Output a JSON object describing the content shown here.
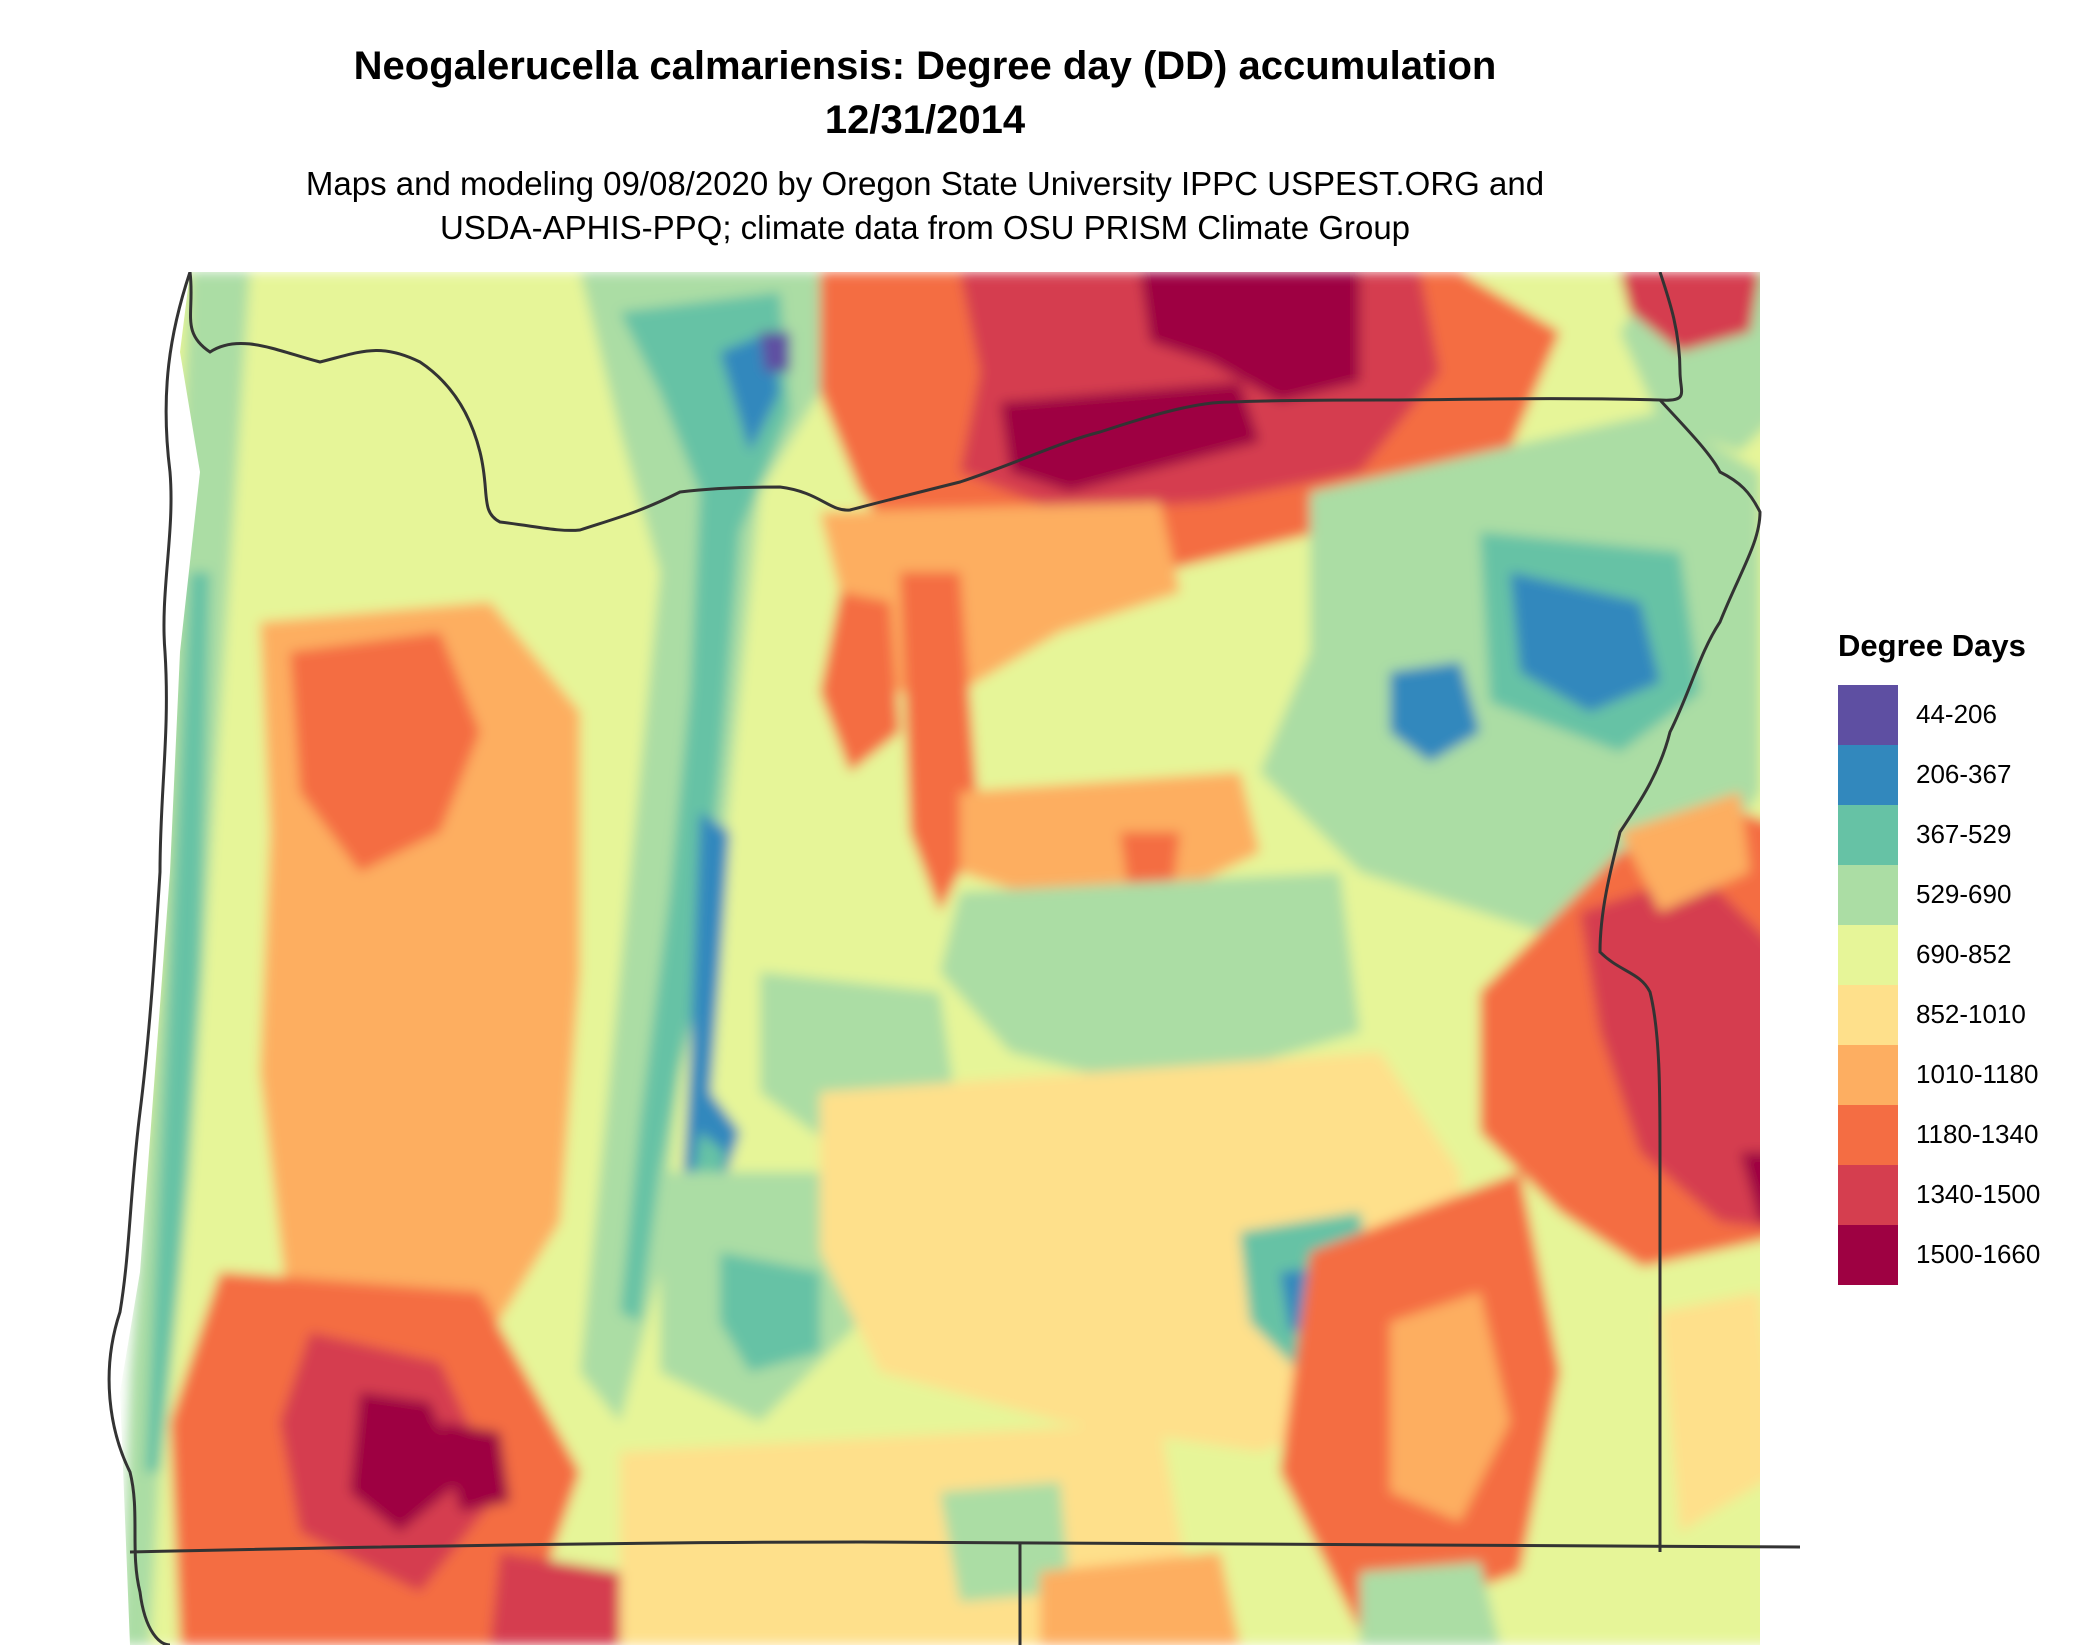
{
  "title": {
    "line1": "Neogalerucella calmariensis: Degree day (DD) accumulation",
    "line2": "12/31/2014"
  },
  "subtitle": {
    "line1": "Maps and modeling 09/08/2020 by Oregon State University IPPC USPEST.ORG and",
    "line2": "USDA-APHIS-PPQ; climate data from OSU PRISM Climate Group"
  },
  "legend": {
    "title": "Degree Days",
    "items": [
      {
        "label": "44-206",
        "color": "#5E4FA2"
      },
      {
        "label": "206-367",
        "color": "#3288BD"
      },
      {
        "label": "367-529",
        "color": "#66C2A5"
      },
      {
        "label": "529-690",
        "color": "#ABDDA4"
      },
      {
        "label": "690-852",
        "color": "#E6F598"
      },
      {
        "label": "852-1010",
        "color": "#FEE08B"
      },
      {
        "label": "1010-1180",
        "color": "#FDAE61"
      },
      {
        "label": "1180-1340",
        "color": "#F46D43"
      },
      {
        "label": "1340-1500",
        "color": "#D53E4F"
      },
      {
        "label": "1500-1660",
        "color": "#9E0142"
      }
    ]
  },
  "map": {
    "region": "Oregon",
    "boundary_color": "#333333"
  }
}
